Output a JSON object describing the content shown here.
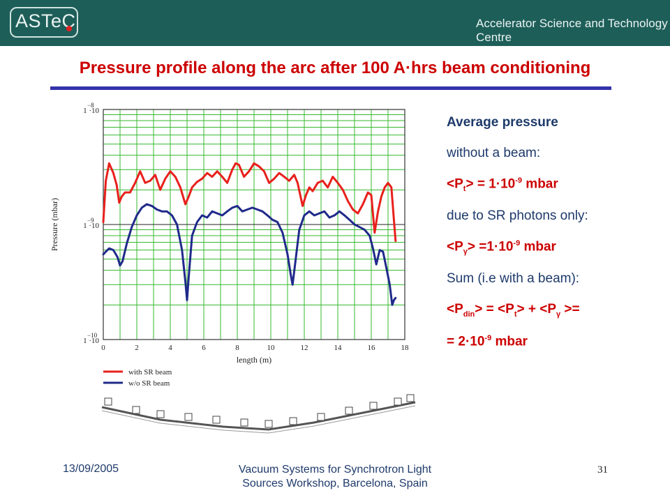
{
  "header": {
    "logo_text": "ASTeC",
    "centre_name": "Accelerator Science and Technology Centre"
  },
  "title": "Pressure profile along the arc after 100 A·hrs beam conditioning",
  "chart_data": {
    "type": "line",
    "title": "",
    "xlabel": "length (m)",
    "ylabel": "Pressure (mbar)",
    "xlim": [
      0,
      18
    ],
    "ylim": [
      1e-10,
      1e-08
    ],
    "y_scale": "log",
    "grid": true,
    "legend_position": "bottom-left",
    "x_ticks": [
      "0",
      "2",
      "4",
      "6",
      "8",
      "10",
      "12",
      "14",
      "16",
      "18"
    ],
    "y_ticks": [
      {
        "value": 1e-08,
        "mantissa": "1 ·10",
        "exp": "−8"
      },
      {
        "value": 1e-09,
        "mantissa": "1 ·10",
        "exp": "−9"
      },
      {
        "value": 1e-10,
        "mantissa": "1 ·10",
        "exp": "−10"
      }
    ],
    "series": [
      {
        "name": "with SR beam",
        "color": "#e8201c",
        "x": [
          0,
          0.15,
          0.35,
          0.6,
          0.8,
          0.95,
          1.1,
          1.3,
          1.6,
          1.9,
          2.2,
          2.5,
          2.8,
          3.1,
          3.4,
          3.7,
          4.0,
          4.3,
          4.6,
          4.9,
          5.1,
          5.3,
          5.6,
          5.9,
          6.2,
          6.5,
          6.8,
          7.1,
          7.4,
          7.7,
          7.9,
          8.1,
          8.4,
          8.7,
          9.0,
          9.3,
          9.6,
          9.9,
          10.2,
          10.5,
          10.8,
          11.1,
          11.4,
          11.6,
          11.9,
          12.1,
          12.3,
          12.5,
          12.8,
          13.1,
          13.4,
          13.7,
          14.0,
          14.3,
          14.6,
          14.9,
          15.2,
          15.5,
          15.8,
          16.0,
          16.2,
          16.4,
          16.6,
          16.8,
          17.0,
          17.2,
          17.35,
          17.45
        ],
        "y": [
          1.05e-09,
          2.4e-09,
          3.4e-09,
          2.8e-09,
          2.2e-09,
          1.55e-09,
          1.75e-09,
          1.9e-09,
          1.9e-09,
          2.3e-09,
          2.9e-09,
          2.3e-09,
          2.4e-09,
          2.7e-09,
          2e-09,
          2.5e-09,
          2.9e-09,
          2.6e-09,
          2.1e-09,
          1.5e-09,
          1.75e-09,
          2.1e-09,
          2.35e-09,
          2.5e-09,
          2.8e-09,
          2.6e-09,
          2.9e-09,
          2.6e-09,
          2.3e-09,
          3e-09,
          3.4e-09,
          3.3e-09,
          2.6e-09,
          2.9e-09,
          3.4e-09,
          3.2e-09,
          2.9e-09,
          2.3e-09,
          2.5e-09,
          2.8e-09,
          2.6e-09,
          2.4e-09,
          2.7e-09,
          2.3e-09,
          1.45e-09,
          1.8e-09,
          2.1e-09,
          1.95e-09,
          2.3e-09,
          2.4e-09,
          2.1e-09,
          2.6e-09,
          2.3e-09,
          2e-09,
          1.6e-09,
          1.35e-09,
          1.25e-09,
          1.5e-09,
          1.9e-09,
          1.8e-09,
          8.5e-10,
          1.3e-09,
          1.75e-09,
          2.1e-09,
          2.3e-09,
          2.1e-09,
          1.1e-09,
          7.2e-10
        ]
      },
      {
        "name": "w/o SR beam",
        "color": "#1f2a8a",
        "x": [
          0,
          0.15,
          0.35,
          0.6,
          0.85,
          1.0,
          1.15,
          1.4,
          1.7,
          2.0,
          2.3,
          2.6,
          2.9,
          3.2,
          3.5,
          3.8,
          4.1,
          4.4,
          4.7,
          4.9,
          5.0,
          5.1,
          5.3,
          5.6,
          5.9,
          6.2,
          6.5,
          6.8,
          7.1,
          7.4,
          7.7,
          8.0,
          8.3,
          8.6,
          8.9,
          9.2,
          9.5,
          9.8,
          10.1,
          10.4,
          10.7,
          11.0,
          11.2,
          11.3,
          11.45,
          11.7,
          12.0,
          12.3,
          12.6,
          12.9,
          13.2,
          13.5,
          13.8,
          14.1,
          14.4,
          14.7,
          15.0,
          15.3,
          15.6,
          15.9,
          16.1,
          16.3,
          16.5,
          16.7,
          16.9,
          17.1,
          17.25,
          17.35,
          17.45
        ],
        "y": [
          5.5e-10,
          5.8e-10,
          6.2e-10,
          6e-10,
          5.2e-10,
          4.4e-10,
          4.8e-10,
          6.8e-10,
          9.5e-10,
          1.2e-09,
          1.4e-09,
          1.5e-09,
          1.45e-09,
          1.35e-09,
          1.3e-09,
          1.3e-09,
          1.2e-09,
          1e-09,
          6e-10,
          3.2e-10,
          2.2e-10,
          3.5e-10,
          8e-10,
          1.05e-09,
          1.2e-09,
          1.15e-09,
          1.3e-09,
          1.25e-09,
          1.2e-09,
          1.3e-09,
          1.4e-09,
          1.45e-09,
          1.3e-09,
          1.35e-09,
          1.4e-09,
          1.35e-09,
          1.3e-09,
          1.2e-09,
          1.1e-09,
          1.05e-09,
          8.5e-10,
          5.5e-10,
          3.6e-10,
          3e-10,
          4.5e-10,
          9e-10,
          1.2e-09,
          1.3e-09,
          1.2e-09,
          1.25e-09,
          1.3e-09,
          1.15e-09,
          1.2e-09,
          1.3e-09,
          1.2e-09,
          1.1e-09,
          1e-09,
          9.5e-10,
          9e-10,
          8e-10,
          6.2e-10,
          4.5e-10,
          6e-10,
          5.8e-10,
          4.2e-10,
          3e-10,
          2e-10,
          2.2e-10,
          2.3e-10
        ]
      }
    ],
    "legend": [
      {
        "label": "with SR beam",
        "color": "#e8201c"
      },
      {
        "label": "w/o SR beam",
        "color": "#1f2a8a"
      }
    ]
  },
  "side": {
    "heading": "Average pressure",
    "line_no_beam": "without a beam:",
    "pt_open": "<P",
    "pt_sub": "t",
    "pt_mid": "> = 1·10",
    "pt_exp": "-9",
    "pt_unit": " mbar",
    "line_sr": "due to SR photons only:",
    "pg_open": "<P",
    "pg_sub": "γ",
    "pg_mid": "> =1·10",
    "pg_exp": "-9",
    "pg_unit": "  mbar",
    "line_sum": "Sum (i.e with a beam):",
    "sum_p1": "<P",
    "sum_sub1": "din",
    "sum_t1": "> = <P",
    "sum_sub2": "t",
    "sum_t2": "> + <P",
    "sum_sub3": "γ",
    "sum_t3": " >=",
    "total_mid": "= 2·10",
    "total_exp": "-9",
    "total_unit": " mbar"
  },
  "footer": {
    "date": "13/09/2005",
    "event_line1": "Vacuum Systems for Synchrotron Light",
    "event_line2": "Sources Workshop, Barcelona, Spain",
    "page": "31"
  }
}
